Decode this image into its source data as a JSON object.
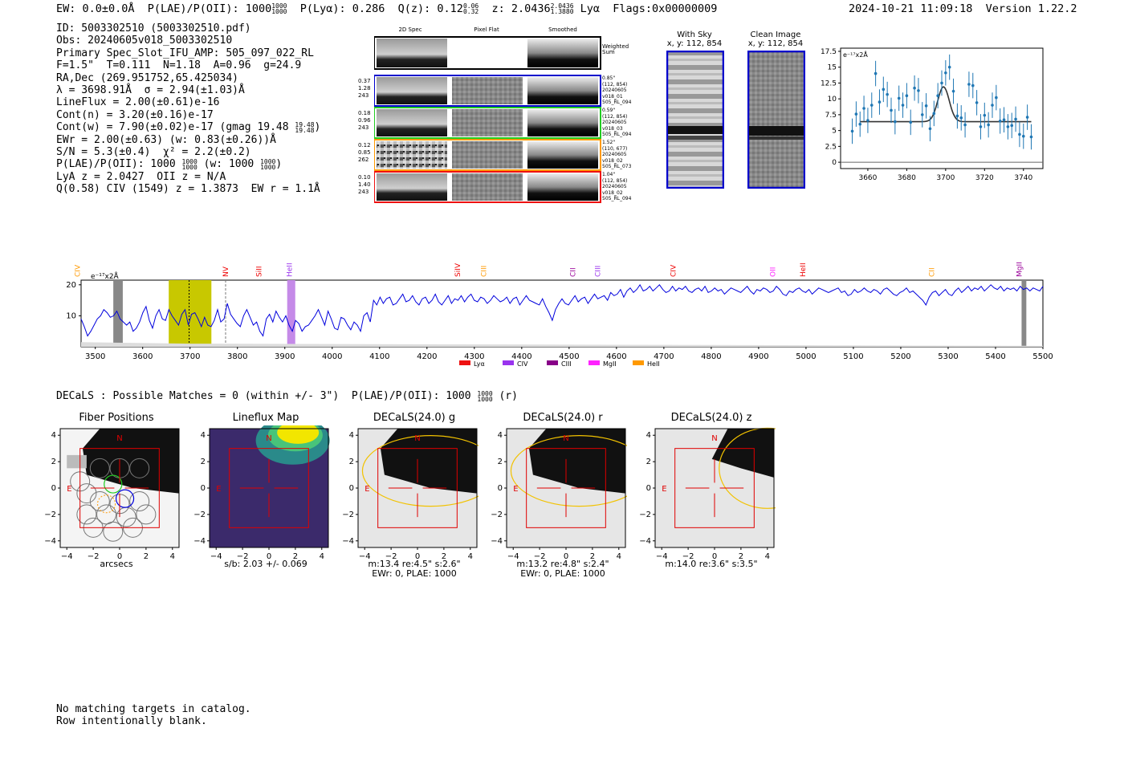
{
  "header": {
    "left": "EW: 0.0±0.0Å  P(LAE)/P(OII): 1000",
    "frac1": [
      "1000",
      "1000"
    ],
    "mid1": "  P(Lyα): 0.286  Q(z): 0.12",
    "frac2": [
      "0.06",
      "0.32"
    ],
    "mid2": "  z: 2.0436",
    "frac3": [
      "2.0436",
      "1.3880"
    ],
    "mid3": " Lyα  Flags:0x00000009",
    "right": "2024-10-21 11:09:18  Version 1.22.2"
  },
  "info": {
    "id": "ID: 5003302510 (5003302510.pdf)",
    "obs": "Obs: 20240605v018_5003302510",
    "primary": "Primary Spec_Slot_IFU_AMP: 505_097_022_RL",
    "params": "F=1.5\"  T=0.111  N=1.18  A=0.96  g=24.9",
    "radec": "RA,Dec (269.951752,65.425034)",
    "lambda": "λ = 3698.91Å  σ = 2.94(±1.03)Å",
    "lineflux": "LineFlux = 2.00(±0.61)e-16",
    "contn": "Cont(n) = 3.20(±0.16)e-17",
    "contw": "Cont(w) = 7.90(±0.02)e-17 (gmag 19.48",
    "contw_frac": [
      "19.48",
      "19.48"
    ],
    "ewr": "EWr = 2.00(±0.63) (w: 0.83(±0.26))Å",
    "sn": "S/N = 5.3(±0.4)  χ² = 2.2(±0.2)",
    "plae": "P(LAE)/P(OII): 1000",
    "plae_frac1": [
      "1000",
      "1000"
    ],
    "plae_mid": " (w: 1000",
    "plae_frac2": [
      "1000",
      "1000"
    ],
    "lya": "LyA z = 2.0427  OII z = N/A",
    "q": "Q(0.58) CIV (1549) z = 1.3873  EW r = 1.1Å"
  },
  "cutouts": {
    "col_titles": [
      "2D Spec",
      "Pixel Flat",
      "Smoothed"
    ],
    "weighted_label": "Weighted Sum",
    "rows": [
      {
        "vals": [
          "0.37",
          "1.28",
          "243"
        ],
        "meta": [
          "0.85\"",
          "(112, 854)",
          "20240605",
          "v018_01",
          "505_RL_094"
        ],
        "color": "#0000cc"
      },
      {
        "vals": [
          "0.18",
          "0.96",
          "243"
        ],
        "meta": [
          "0.59\"",
          "(112, 854)",
          "20240605",
          "v018_03",
          "505_RL_094"
        ],
        "color": "#22cc22"
      },
      {
        "vals": [
          "0.12",
          "0.85",
          "262"
        ],
        "meta": [
          "1.52\"",
          "(110, 677)",
          "20240605",
          "v018_02",
          "505_RL_073"
        ],
        "color": "#ff9900"
      },
      {
        "vals": [
          "0.10",
          "1.40",
          "243"
        ],
        "meta": [
          "1.04\"",
          "(112, 854)",
          "20240605",
          "v018_02",
          "505_RL_094"
        ],
        "color": "#ee1111"
      }
    ]
  },
  "sky": {
    "with_sky_title": "With Sky",
    "with_sky_coords": "x, y: 112, 854",
    "clean_title": "Clean Image",
    "clean_coords": "x, y: 112, 854"
  },
  "fit_chart": {
    "unit_label": "e⁻¹⁷x2Å",
    "x_ticks": [
      3660,
      3680,
      3700,
      3720,
      3740
    ],
    "y_ticks": [
      0.0,
      2.5,
      5.0,
      7.5,
      10.0,
      12.5,
      15.0,
      17.5
    ],
    "xlim": [
      3646,
      3750
    ],
    "ylim": [
      -1,
      18
    ]
  },
  "chart_data": {
    "type": "scatter",
    "x": [
      3652,
      3654,
      3656,
      3658,
      3660,
      3662,
      3664,
      3666,
      3668,
      3670,
      3672,
      3674,
      3676,
      3678,
      3680,
      3682,
      3684,
      3686,
      3688,
      3690,
      3692,
      3694,
      3696,
      3698,
      3700,
      3702,
      3704,
      3706,
      3708,
      3710,
      3712,
      3714,
      3716,
      3718,
      3720,
      3722,
      3724,
      3726,
      3728,
      3730,
      3732,
      3734,
      3736,
      3738,
      3740,
      3742,
      3744
    ],
    "y": [
      4.9,
      7.6,
      6.0,
      8.5,
      6.6,
      9.0,
      14.0,
      9.5,
      11.5,
      10.7,
      8.2,
      6.4,
      10.1,
      9.0,
      10.5,
      6.3,
      11.7,
      11.3,
      7.5,
      8.9,
      5.3,
      7.7,
      10.5,
      12.5,
      14.1,
      15.0,
      11.2,
      7.3,
      7.0,
      5.9,
      12.3,
      12.1,
      9.4,
      5.6,
      7.4,
      5.9,
      9.0,
      10.2,
      6.5,
      6.7,
      5.6,
      5.8,
      6.8,
      4.4,
      4.1,
      7.1,
      4.0
    ],
    "yerr": [
      2.0,
      2.0,
      2.0,
      2.0,
      2.0,
      2.0,
      2.0,
      2.0,
      2.0,
      2.0,
      2.0,
      2.0,
      2.0,
      2.0,
      2.0,
      2.0,
      2.0,
      2.0,
      2.0,
      2.0,
      2.0,
      2.0,
      2.0,
      2.0,
      2.0,
      2.0,
      2.0,
      2.0,
      2.0,
      2.0,
      2.0,
      2.0,
      2.0,
      2.0,
      2.0,
      2.0,
      2.0,
      2.0,
      2.0,
      2.0,
      2.0,
      2.0,
      2.0,
      2.0,
      2.0,
      2.0,
      2.0
    ],
    "fit": {
      "continuum": 6.4,
      "amplitude": 5.5,
      "center": 3698.9,
      "sigma": 2.94
    },
    "xlabel": "",
    "ylabel": ""
  },
  "full_spectrum": {
    "unit_label": "e⁻¹⁷x2Å",
    "x_ticks": [
      3500,
      3600,
      3700,
      3800,
      3900,
      4000,
      4100,
      4200,
      4300,
      4400,
      4500,
      4600,
      4700,
      4800,
      4900,
      5000,
      5100,
      5200,
      5300,
      5400,
      5500
    ],
    "y_ticks": [
      10,
      20
    ],
    "xlim": [
      3470,
      5500
    ],
    "ylim": [
      0,
      21.5
    ],
    "flux": [
      9.0,
      6.5,
      3.5,
      5.0,
      7.0,
      9.0,
      10.0,
      12.0,
      11.0,
      9.5,
      10.0,
      11.5,
      9.0,
      8.0,
      7.0,
      8.0,
      5.0,
      6.0,
      8.0,
      11.0,
      13.0,
      8.5,
      6.0,
      10.0,
      12.0,
      9.0,
      8.5,
      12.0,
      10.0,
      8.5,
      7.0,
      10.5,
      12.0,
      7.0,
      10.5,
      11.0,
      9.0,
      6.5,
      9.5,
      7.0,
      6.5,
      8.5,
      12.0,
      8.0,
      9.0,
      14.0,
      10.5,
      9.0,
      7.5,
      6.5,
      10.0,
      12.0,
      9.5,
      7.0,
      8.0,
      5.0,
      3.5,
      9.0,
      10.5,
      8.0,
      11.5,
      9.5,
      8.0,
      10.0,
      7.0,
      5.0,
      8.5,
      7.5,
      5.0,
      6.5,
      7.0,
      8.5,
      10.0,
      12.0,
      9.5,
      7.0,
      11.5,
      9.0,
      6.0,
      5.5,
      9.5,
      9.0,
      7.0,
      5.5,
      8.0,
      7.0,
      5.0,
      10.0,
      11.0,
      8.0,
      15.0,
      13.5,
      16.0,
      14.0,
      15.5,
      16.0,
      13.5,
      14.0,
      15.5,
      17.0,
      14.5,
      15.0,
      16.5,
      14.5,
      13.5,
      15.5,
      16.0,
      14.0,
      15.0,
      17.0,
      14.5,
      13.5,
      15.0,
      16.5,
      14.0,
      15.5,
      15.0,
      16.5,
      14.5,
      16.0,
      17.0,
      15.0,
      14.5,
      16.0,
      15.5,
      14.0,
      15.0,
      16.5,
      15.5,
      14.5,
      15.0,
      16.0,
      14.0,
      15.5,
      16.0,
      13.5,
      15.0,
      16.5,
      15.0,
      14.5,
      14.0,
      13.5,
      15.5,
      13.0,
      11.0,
      8.5,
      12.0,
      14.0,
      15.5,
      14.0,
      13.5,
      15.0,
      16.5,
      14.5,
      15.5,
      16.0,
      14.0,
      15.5,
      17.0,
      15.5,
      16.0,
      16.5,
      15.0,
      17.5,
      16.5,
      17.0,
      18.5,
      16.0,
      18.0,
      19.0,
      17.5,
      18.5,
      20.0,
      18.0,
      18.5,
      19.5,
      18.0,
      19.0,
      20.0,
      18.5,
      17.5,
      18.0,
      19.5,
      18.0,
      19.0,
      18.5,
      19.5,
      18.0,
      17.5,
      18.5,
      19.0,
      18.0,
      19.5,
      17.5,
      18.0,
      19.0,
      18.0,
      18.5,
      17.0,
      18.0,
      19.0,
      18.5,
      18.0,
      17.5,
      18.5,
      19.5,
      18.0,
      17.0,
      18.5,
      18.0,
      19.0,
      18.5,
      17.5,
      18.0,
      19.5,
      18.5,
      17.0,
      16.5,
      18.0,
      17.5,
      18.5,
      19.0,
      18.0,
      17.5,
      18.5,
      17.0,
      18.0,
      19.0,
      18.5,
      18.0,
      17.5,
      18.0,
      18.5,
      19.0,
      17.5,
      18.0,
      16.5,
      17.0,
      18.5,
      17.5,
      18.0,
      19.0,
      18.0,
      17.5,
      18.5,
      18.0,
      17.0,
      18.5,
      19.0,
      18.0,
      17.0,
      16.5,
      17.5,
      18.0,
      19.0,
      17.5,
      18.0,
      17.0,
      16.0,
      15.0,
      13.5,
      16.0,
      17.5,
      18.0,
      16.5,
      17.5,
      18.5,
      17.0,
      16.5,
      18.0,
      19.0,
      17.5,
      18.5,
      19.5,
      18.0,
      19.0,
      18.5,
      19.5,
      18.0,
      19.0,
      20.0,
      19.0,
      18.5,
      19.5,
      18.0,
      19.0,
      18.5,
      19.0,
      18.0,
      19.5,
      18.5,
      19.0,
      18.0,
      19.0,
      18.5,
      18.0,
      19.5
    ]
  },
  "spectrum_lines": [
    {
      "name": "CIV",
      "x": 3462,
      "color": "#ff9900"
    },
    {
      "name": "NV",
      "x": 3775,
      "color": "#ee0000"
    },
    {
      "name": "SiII",
      "x": 3845,
      "color": "#ee0000"
    },
    {
      "name": "HeII",
      "x": 3910,
      "color": "#9933ee"
    },
    {
      "name": "SiIV",
      "x": 4265,
      "color": "#ee0000"
    },
    {
      "name": "CIII",
      "x": 4320,
      "color": "#ff9900"
    },
    {
      "name": "CII",
      "x": 4508,
      "color": "#990099"
    },
    {
      "name": "CIII",
      "x": 4560,
      "color": "#9933ee"
    },
    {
      "name": "CIV",
      "x": 4720,
      "color": "#ee0000"
    },
    {
      "name": "OII",
      "x": 4930,
      "color": "#ff22ff"
    },
    {
      "name": "HeII",
      "x": 4993,
      "color": "#ee0000"
    },
    {
      "name": "CII",
      "x": 5265,
      "color": "#ff9900"
    },
    {
      "name": "MgII",
      "x": 5450,
      "color": "#990099"
    }
  ],
  "legend": [
    {
      "label": "Lyα",
      "color": "#ee1111"
    },
    {
      "label": "CIV",
      "color": "#9933ee"
    },
    {
      "label": "CIII",
      "color": "#880088"
    },
    {
      "label": "MgII",
      "color": "#ff22ff"
    },
    {
      "label": "HeII",
      "color": "#ff9900"
    }
  ],
  "decals": {
    "headline": "DECaLS : Possible Matches = 0 (within +/- 3\")  P(LAE)/P(OII): 1000",
    "headline_frac": [
      "1000",
      "1000"
    ],
    "headline_tail": " (r)"
  },
  "panels": [
    {
      "title": "Fiber Positions",
      "cap1": "arcsecs",
      "cap2": ""
    },
    {
      "title": "Lineflux Map",
      "cap1": "s/b: 2.03 +/- 0.069",
      "cap2": ""
    },
    {
      "title": "DECaLS(24.0) g",
      "cap1": "m:13.4  re:4.5\"  s:2.6\"",
      "cap2": "EWr: 0, PLAE: 1000"
    },
    {
      "title": "DECaLS(24.0) r",
      "cap1": "m:13.2  re:4.8\"  s:2.4\"",
      "cap2": "EWr: 0, PLAE: 1000"
    },
    {
      "title": "DECaLS(24.0) z",
      "cap1": "m:14.0  re:3.6\"  s:3.5\"",
      "cap2": ""
    }
  ],
  "panel_ticks": [
    "−4",
    "−2",
    "0",
    "2",
    "4"
  ],
  "compass": {
    "n": "N",
    "e": "E"
  },
  "footer": {
    "line1": "No matching targets in catalog.",
    "line2": "Row intentionally blank."
  }
}
